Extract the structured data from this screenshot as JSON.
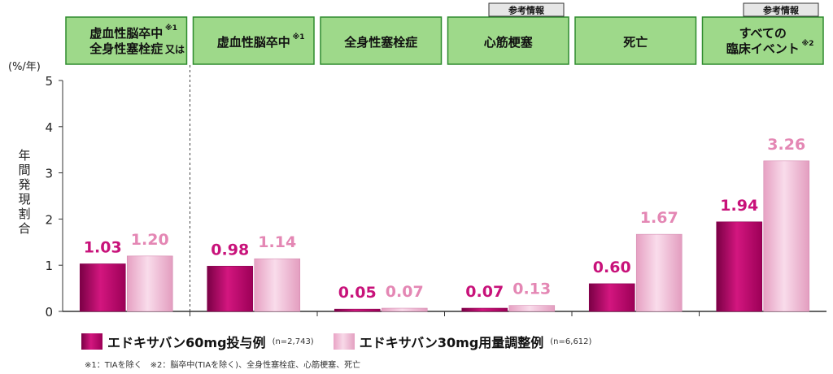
{
  "headers": [
    {
      "label_lines": [
        "虚血性脳卒中",
        "全身性塞栓症"
      ],
      "suffix_lines": [
        "※1",
        "又は"
      ],
      "tag": ""
    },
    {
      "label_lines": [
        "虚血性脳卒中"
      ],
      "suffix_lines": [
        "※1"
      ],
      "tag": ""
    },
    {
      "label_lines": [
        "全身性塞栓症"
      ],
      "suffix_lines": [],
      "tag": ""
    },
    {
      "label_lines": [
        "心筋梗塞"
      ],
      "suffix_lines": [],
      "tag": "参考情報"
    },
    {
      "label_lines": [
        "死亡"
      ],
      "suffix_lines": [],
      "tag": ""
    },
    {
      "label_lines": [
        "すべての",
        "臨床イベント"
      ],
      "suffix_lines": [
        "",
        "※2"
      ],
      "tag": "参考情報"
    }
  ],
  "chart_data": {
    "type": "bar",
    "categories": [
      "虚血性脳卒中又は全身性塞栓症",
      "虚血性脳卒中",
      "全身性塞栓症",
      "心筋梗塞",
      "死亡",
      "すべての臨床イベント"
    ],
    "series": [
      {
        "name": "エドキサバン60mg投与例",
        "n_label": "(n=2,743)",
        "values": [
          1.03,
          0.98,
          0.05,
          0.07,
          0.6,
          1.94
        ],
        "labels": [
          "1.03",
          "0.98",
          "0.05",
          "0.07",
          "0.60",
          "1.94"
        ],
        "color": "#d3167f",
        "label_color": "#c8127a"
      },
      {
        "name": "エドキサバン30mg用量調整例",
        "n_label": "(n=6,612)",
        "values": [
          1.2,
          1.14,
          0.07,
          0.13,
          1.67,
          3.26
        ],
        "labels": [
          "1.20",
          "1.14",
          "0.07",
          "0.13",
          "1.67",
          "3.26"
        ],
        "color": "#f2b9d5",
        "label_color": "#e487b4"
      }
    ],
    "ylim": [
      0,
      5
    ],
    "yticks": [
      "0",
      "1",
      "2",
      "3",
      "4",
      "5"
    ],
    "ylabel": "年間発現割合",
    "yunit": "(%/年)",
    "legend": "bottom"
  },
  "footnote": "※1：TIAを除く　※2：脳卒中(TIAを除く)、全身性塞栓症、心筋梗塞、死亡",
  "colors": {
    "header_bg": "#9ed98a",
    "header_border": "#2e8b2e",
    "tag_bg": "#e6e6e6"
  }
}
